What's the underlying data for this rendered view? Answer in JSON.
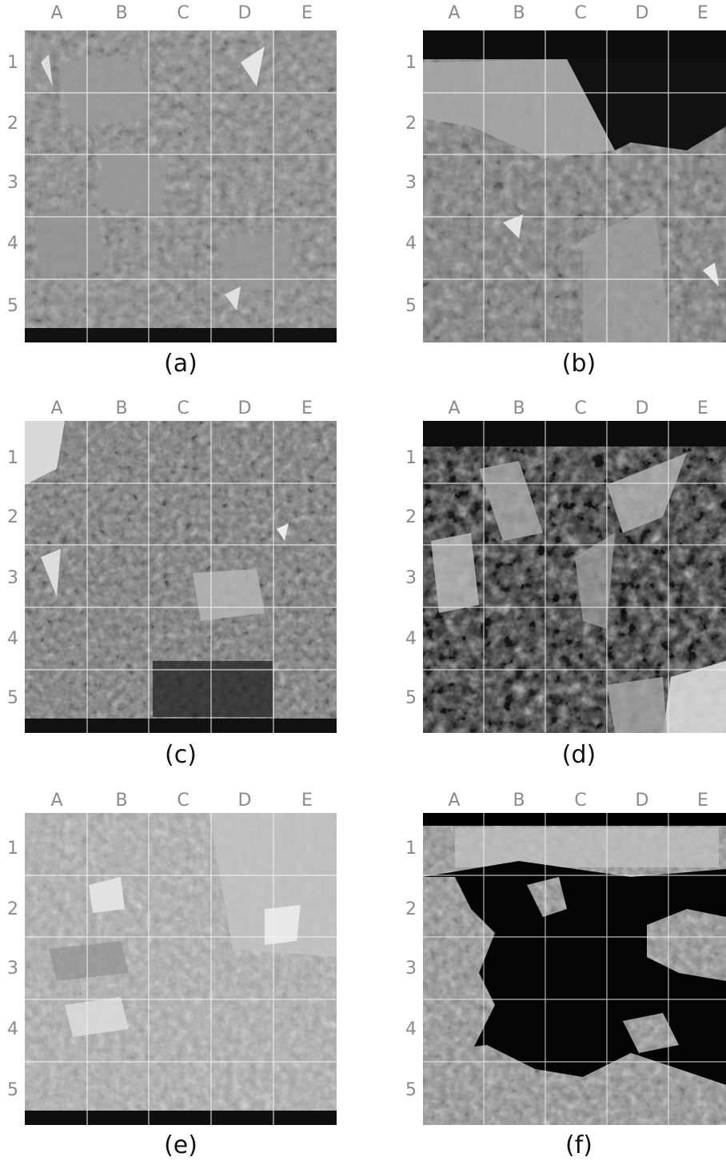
{
  "column_labels": [
    "A",
    "B",
    "C",
    "D",
    "E"
  ],
  "row_labels": [
    "1",
    "2",
    "3",
    "4",
    "5"
  ],
  "panels": [
    {
      "caption": "(a)",
      "tone": "medium-gray",
      "dark_band": "bottom"
    },
    {
      "caption": "(b)",
      "tone": "medium-gray",
      "dark_band": "top"
    },
    {
      "caption": "(c)",
      "tone": "medium-gray",
      "dark_band": "bottom"
    },
    {
      "caption": "(d)",
      "tone": "dark",
      "dark_band": "top"
    },
    {
      "caption": "(e)",
      "tone": "light-gray",
      "dark_band": "bottom"
    },
    {
      "caption": "(f)",
      "tone": "mostly-black",
      "dark_band": "top"
    }
  ]
}
